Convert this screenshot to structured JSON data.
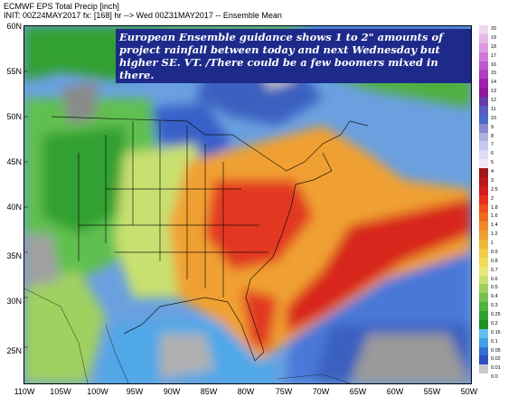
{
  "header": {
    "line1": "ECMWF EPS Total Precip [inch]",
    "line2": "INIT: 00Z24MAY2017 fx: [168] hr --> Wed 00Z31MAY2017 -- Ensemble Mean"
  },
  "annotation": "European Ensemble guidance shows 1 to 2\" amounts of project rainfall between today and next Wednesday but higher SE. VT. /There could be a few boomers mixed in there.",
  "lat_labels": [
    "60N",
    "55N",
    "50N",
    "45N",
    "40N",
    "35N",
    "30N",
    "25N"
  ],
  "lon_labels": [
    "110W",
    "105W",
    "100W",
    "95W",
    "90W",
    "85W",
    "80W",
    "75W",
    "70W",
    "65W",
    "60W",
    "55W",
    "50W"
  ],
  "colorbar": {
    "labels": [
      "20",
      "19",
      "18",
      "17",
      "16",
      "15",
      "14",
      "13",
      "12",
      "11",
      "10",
      "9",
      "8",
      "7",
      "6",
      "5",
      "4",
      "3",
      "2.5",
      "2",
      "1.8",
      "1.6",
      "1.4",
      "1.2",
      "1",
      "0.9",
      "0.8",
      "0.7",
      "0.6",
      "0.5",
      "0.4",
      "0.3",
      "0.25",
      "0.2",
      "0.15",
      "0.1",
      "0.05",
      "0.02",
      "0.01",
      "0.0"
    ],
    "colors": [
      "#f0d8f0",
      "#e6b8e8",
      "#dc98e0",
      "#d078d6",
      "#c058cc",
      "#b040c0",
      "#a020b0",
      "#901898",
      "#6a3aa8",
      "#5a5ac0",
      "#4a6acc",
      "#8a8acc",
      "#b0b0e0",
      "#c8c8f0",
      "#dcdcf8",
      "#f0e8f0",
      "#a01818",
      "#b81818",
      "#d02020",
      "#e83020",
      "#f05020",
      "#f06a20",
      "#f08828",
      "#f0a030",
      "#f0b838",
      "#f0cc48",
      "#f0dc58",
      "#e8e878",
      "#c8e070",
      "#a0d060",
      "#78c050",
      "#50b040",
      "#30a030",
      "#209020",
      "#60c0f0",
      "#40a0e8",
      "#3070d0",
      "#3050c0",
      "#c8c8c8",
      "#ffffff"
    ]
  },
  "legend_colors": {
    "ocean_light": "#4a78d8",
    "heavy_red": "#d8281c",
    "orange": "#f08830",
    "green": "#30a030"
  }
}
